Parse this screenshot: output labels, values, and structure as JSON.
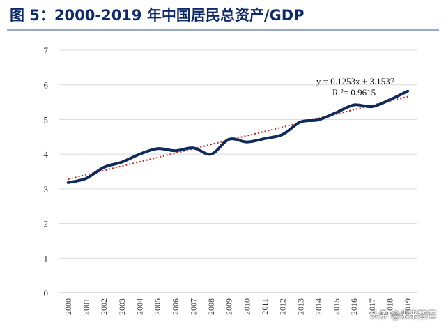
{
  "title": "图 5：2000-2019 年中国居民总资产/GDP",
  "watermark": "头条 @未来智库",
  "chart_data": {
    "type": "line",
    "x": [
      "2000",
      "2001",
      "2002",
      "2003",
      "2004",
      "2005",
      "2006",
      "2007",
      "2008",
      "2009",
      "2010",
      "2011",
      "2012",
      "2013",
      "2014",
      "2015",
      "2016",
      "2017",
      "2018",
      "2019"
    ],
    "series": [
      {
        "values": [
          3.18,
          3.3,
          3.62,
          3.77,
          4.0,
          4.16,
          4.1,
          4.18,
          4.0,
          4.43,
          4.35,
          4.45,
          4.57,
          4.93,
          4.99,
          5.2,
          5.42,
          5.37,
          5.57,
          5.82
        ]
      }
    ],
    "trendline": {
      "type": "linear",
      "equation": "y = 0.1253x + 3.1537",
      "r_squared": "R ²= 0.9615",
      "slope": 0.1253,
      "intercept": 3.1537
    },
    "ylim": [
      0,
      7
    ],
    "yticks": [
      "0",
      "1",
      "2",
      "3",
      "4",
      "5",
      "6",
      "7"
    ],
    "grid": "horizontal",
    "xlabel": "",
    "ylabel": "",
    "colors": {
      "series": "#0f2b5b",
      "trendline": "#c0221f",
      "grid": "#d9d9d9",
      "title": "#0d2b6b"
    }
  }
}
